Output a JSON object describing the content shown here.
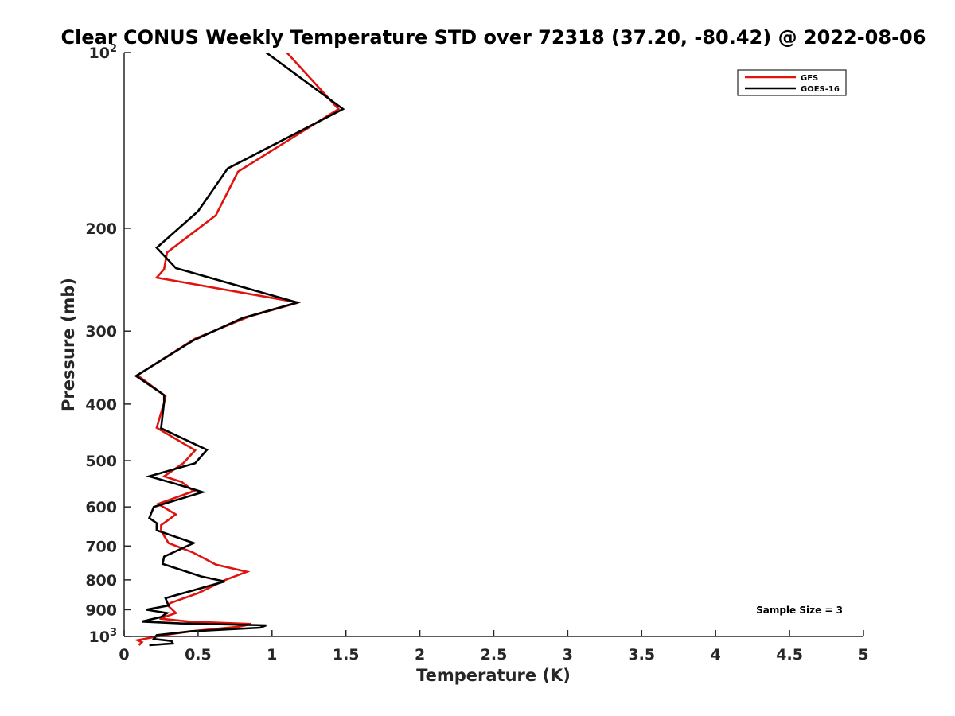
{
  "chart_data": {
    "type": "line",
    "title": "Clear CONUS Weekly Temperature STD over 72318 (37.20, -80.42) @ 2022-08-06",
    "xlabel": "Temperature (K)",
    "ylabel": "Pressure (mb)",
    "xlim": [
      0,
      5
    ],
    "ylim": [
      100,
      1000
    ],
    "y_scale": "log",
    "y_reversed": true,
    "x_ticks": [
      "0",
      "0.5",
      "1",
      "1.5",
      "2",
      "2.5",
      "3",
      "3.5",
      "4",
      "4.5",
      "5"
    ],
    "y_ticks": [
      {
        "value": 100,
        "base": "10",
        "exp": "2"
      },
      {
        "value": 200,
        "label": "200"
      },
      {
        "value": 300,
        "label": "300"
      },
      {
        "value": 400,
        "label": "400"
      },
      {
        "value": 500,
        "label": "500"
      },
      {
        "value": 600,
        "label": "600"
      },
      {
        "value": 700,
        "label": "700"
      },
      {
        "value": 800,
        "label": "800"
      },
      {
        "value": 900,
        "label": "900"
      },
      {
        "value": 1000,
        "base": "10",
        "exp": "3"
      }
    ],
    "grid": false,
    "legend_position": "top-right",
    "annotation": "Sample Size = 3",
    "series": [
      {
        "name": "GFS",
        "color": "#e0140e",
        "points": [
          [
            1.1,
            100
          ],
          [
            1.45,
            125
          ],
          [
            0.77,
            160
          ],
          [
            0.62,
            190
          ],
          [
            0.29,
            220
          ],
          [
            0.27,
            235
          ],
          [
            0.22,
            243
          ],
          [
            1.18,
            268
          ],
          [
            0.85,
            283
          ],
          [
            0.48,
            309
          ],
          [
            0.09,
            357
          ],
          [
            0.28,
            388
          ],
          [
            0.27,
            398
          ],
          [
            0.22,
            439
          ],
          [
            0.48,
            480
          ],
          [
            0.4,
            505
          ],
          [
            0.27,
            532
          ],
          [
            0.39,
            544
          ],
          [
            0.47,
            564
          ],
          [
            0.23,
            593
          ],
          [
            0.35,
            618
          ],
          [
            0.25,
            645
          ],
          [
            0.25,
            659
          ],
          [
            0.3,
            692
          ],
          [
            0.46,
            717
          ],
          [
            0.62,
            753
          ],
          [
            0.83,
            775
          ],
          [
            0.68,
            801
          ],
          [
            0.5,
            843
          ],
          [
            0.31,
            877
          ],
          [
            0.3,
            887
          ],
          [
            0.35,
            912
          ],
          [
            0.24,
            932
          ],
          [
            0.44,
            943
          ],
          [
            0.86,
            952
          ],
          [
            0.78,
            962
          ],
          [
            0.45,
            980
          ],
          [
            0.27,
            995
          ],
          [
            0.09,
            1015
          ],
          [
            0.12,
            1023
          ],
          [
            0.1,
            1035
          ]
        ]
      },
      {
        "name": "GOES-16",
        "color": "#000000",
        "points": [
          [
            0.96,
            100
          ],
          [
            1.48,
            125
          ],
          [
            0.7,
            158
          ],
          [
            0.5,
            187
          ],
          [
            0.22,
            216
          ],
          [
            0.35,
            234
          ],
          [
            1.17,
            268
          ],
          [
            0.8,
            285
          ],
          [
            0.47,
            311
          ],
          [
            0.08,
            358
          ],
          [
            0.27,
            386
          ],
          [
            0.27,
            397
          ],
          [
            0.25,
            440
          ],
          [
            0.56,
            479
          ],
          [
            0.48,
            505
          ],
          [
            0.17,
            532
          ],
          [
            0.35,
            548
          ],
          [
            0.53,
            566
          ],
          [
            0.2,
            600
          ],
          [
            0.17,
            627
          ],
          [
            0.22,
            640
          ],
          [
            0.22,
            658
          ],
          [
            0.47,
            692
          ],
          [
            0.27,
            730
          ],
          [
            0.26,
            751
          ],
          [
            0.52,
            789
          ],
          [
            0.68,
            805
          ],
          [
            0.28,
            860
          ],
          [
            0.3,
            885
          ],
          [
            0.15,
            900
          ],
          [
            0.29,
            912
          ],
          [
            0.25,
            926
          ],
          [
            0.12,
            943
          ],
          [
            0.38,
            950
          ],
          [
            0.96,
            957
          ],
          [
            0.92,
            966
          ],
          [
            0.45,
            980
          ],
          [
            0.22,
            995
          ],
          [
            0.2,
            1010
          ],
          [
            0.32,
            1018
          ],
          [
            0.33,
            1028
          ],
          [
            0.17,
            1035
          ]
        ]
      }
    ]
  }
}
